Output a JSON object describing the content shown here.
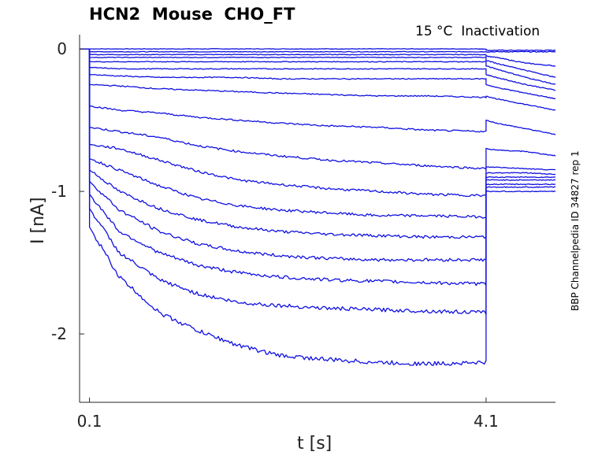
{
  "chart_data": {
    "type": "line",
    "title": "HCN2  Mouse  CHO_FT",
    "subtitle": "15 °C  Inactivation",
    "side_note": "BBP Channelpedia ID 34827 rep 1",
    "xlabel": "t [s]",
    "ylabel": "I [nA]",
    "xlim": [
      0.0,
      4.8
    ],
    "ylim": [
      -2.48,
      0.1
    ],
    "x_ticks": [
      0.1,
      4.1
    ],
    "x_tick_labels": [
      "0.1",
      "4.1"
    ],
    "y_ticks": [
      0,
      -1,
      -2
    ],
    "y_tick_labels": [
      "0",
      "-1",
      "-2"
    ],
    "grid": false,
    "line_color": "#1010e0",
    "x": [
      0.1,
      0.4,
      0.8,
      1.2,
      1.6,
      2.0,
      2.5,
      3.0,
      3.5,
      4.1
    ],
    "tail_x": [
      4.1,
      4.2,
      4.5,
      4.8
    ],
    "series": [
      {
        "values": [
          0.0,
          0.0,
          0.0,
          0.0,
          0.0,
          0.0,
          0.0,
          0.0,
          0.0,
          0.0
        ],
        "tail": [
          -0.01,
          -0.01,
          -0.01,
          -0.01
        ]
      },
      {
        "values": [
          -0.02,
          -0.02,
          -0.02,
          -0.02,
          -0.02,
          -0.02,
          -0.02,
          -0.02,
          -0.02,
          -0.02
        ],
        "tail": [
          -0.02,
          -0.02,
          -0.02,
          -0.02
        ]
      },
      {
        "values": [
          -0.04,
          -0.04,
          -0.04,
          -0.04,
          -0.04,
          -0.04,
          -0.04,
          -0.04,
          -0.04,
          -0.04
        ],
        "tail": [
          -0.05,
          -0.06,
          -0.1,
          -0.12
        ]
      },
      {
        "values": [
          -0.06,
          -0.06,
          -0.06,
          -0.06,
          -0.06,
          -0.06,
          -0.06,
          -0.06,
          -0.06,
          -0.06
        ],
        "tail": [
          -0.08,
          -0.1,
          -0.15,
          -0.2
        ]
      },
      {
        "values": [
          -0.09,
          -0.09,
          -0.09,
          -0.09,
          -0.09,
          -0.09,
          -0.09,
          -0.09,
          -0.09,
          -0.09
        ],
        "tail": [
          -0.12,
          -0.14,
          -0.2,
          -0.25
        ]
      },
      {
        "values": [
          -0.13,
          -0.14,
          -0.14,
          -0.14,
          -0.14,
          -0.14,
          -0.14,
          -0.14,
          -0.14,
          -0.14
        ],
        "tail": [
          -0.18,
          -0.2,
          -0.25,
          -0.29
        ]
      },
      {
        "values": [
          -0.18,
          -0.19,
          -0.2,
          -0.2,
          -0.2,
          -0.21,
          -0.21,
          -0.21,
          -0.21,
          -0.21
        ],
        "tail": [
          -0.25,
          -0.27,
          -0.31,
          -0.35
        ]
      },
      {
        "values": [
          -0.25,
          -0.26,
          -0.28,
          -0.29,
          -0.3,
          -0.31,
          -0.32,
          -0.33,
          -0.33,
          -0.34
        ],
        "tail": [
          -0.33,
          -0.35,
          -0.39,
          -0.43
        ]
      },
      {
        "values": [
          -0.4,
          -0.43,
          -0.45,
          -0.48,
          -0.5,
          -0.52,
          -0.54,
          -0.55,
          -0.57,
          -0.58
        ],
        "tail": [
          -0.5,
          -0.52,
          -0.56,
          -0.6
        ]
      },
      {
        "values": [
          -0.55,
          -0.58,
          -0.62,
          -0.68,
          -0.72,
          -0.75,
          -0.78,
          -0.8,
          -0.82,
          -0.84
        ],
        "tail": [
          -0.7,
          -0.71,
          -0.72,
          -0.75
        ]
      },
      {
        "values": [
          -0.67,
          -0.7,
          -0.78,
          -0.86,
          -0.92,
          -0.95,
          -0.98,
          -1.0,
          -1.02,
          -1.03
        ],
        "tail": [
          -0.83,
          -0.83,
          -0.84,
          -0.85
        ]
      },
      {
        "values": [
          -0.77,
          -0.85,
          -0.96,
          -1.05,
          -1.1,
          -1.13,
          -1.15,
          -1.17,
          -1.17,
          -1.18
        ],
        "tail": [
          -0.87,
          -0.87,
          -0.87,
          -0.88
        ]
      },
      {
        "values": [
          -0.85,
          -1.0,
          -1.12,
          -1.2,
          -1.25,
          -1.28,
          -1.3,
          -1.31,
          -1.32,
          -1.32
        ],
        "tail": [
          -0.9,
          -0.9,
          -0.9,
          -0.9
        ]
      },
      {
        "values": [
          -0.93,
          -1.13,
          -1.28,
          -1.37,
          -1.42,
          -1.45,
          -1.47,
          -1.48,
          -1.48,
          -1.48
        ],
        "tail": [
          -0.92,
          -0.92,
          -0.92,
          -0.92
        ]
      },
      {
        "values": [
          -1.02,
          -1.28,
          -1.43,
          -1.52,
          -1.57,
          -1.6,
          -1.62,
          -1.63,
          -1.64,
          -1.65
        ],
        "tail": [
          -0.95,
          -0.95,
          -0.95,
          -0.95
        ]
      },
      {
        "values": [
          -1.12,
          -1.43,
          -1.62,
          -1.72,
          -1.78,
          -1.8,
          -1.82,
          -1.83,
          -1.84,
          -1.85
        ],
        "tail": [
          -0.97,
          -0.97,
          -0.97,
          -0.97
        ]
      },
      {
        "values": [
          -1.25,
          -1.6,
          -1.85,
          -1.98,
          -2.08,
          -2.15,
          -2.18,
          -2.2,
          -2.21,
          -2.2
        ],
        "tail": [
          -1.0,
          -1.0,
          -1.0,
          -1.0
        ]
      }
    ]
  }
}
